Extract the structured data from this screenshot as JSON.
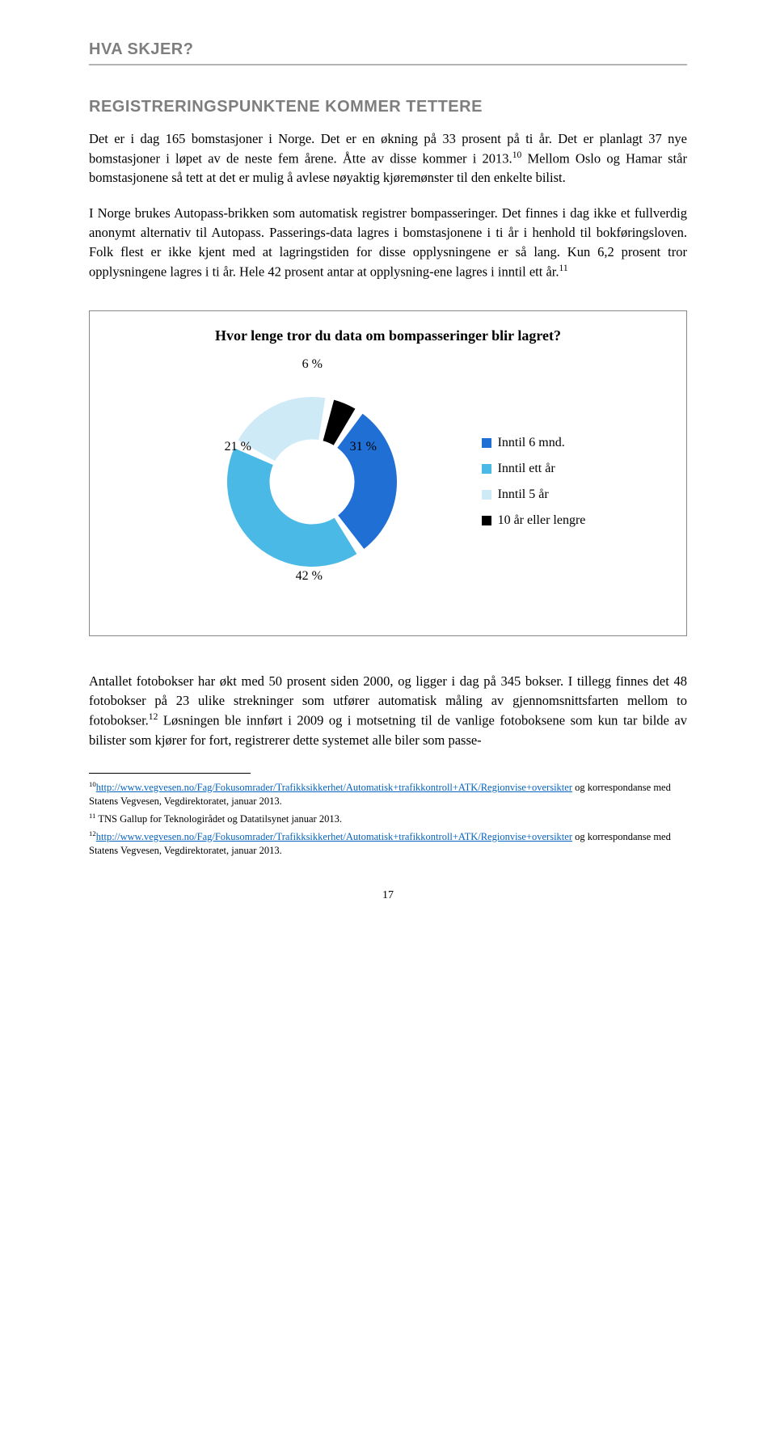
{
  "header": {
    "title": "HVA SKJER?"
  },
  "section": {
    "title": "REGISTRERINGSPUNKTENE KOMMER TETTERE"
  },
  "paragraphs": {
    "p1a": "Det er i dag 165 bomstasjoner i Norge. Det er en økning på 33 prosent på ti år. Det er planlagt 37 nye bomstasjoner i løpet av de neste fem årene. Åtte av disse kommer i 2013.",
    "p1b": " Mellom Oslo og Hamar står bomstasjonene så tett at det er mulig å avlese nøyaktig kjøremønster til den enkelte bilist.",
    "p2a": "I Norge brukes Autopass-brikken som automatisk registrer bompasseringer. Det finnes i dag ikke et fullverdig anonymt alternativ til Autopass. Passerings-data lagres i bomstasjonene i ti år i henhold til bokføringsloven. Folk flest er ikke kjent med at lagringstiden for disse opplysningene er så lang. Kun 6,2 prosent tror opplysningene lagres i ti år. Hele 42 prosent antar at opplysning-ene lagres i inntil ett år.",
    "p3a": "Antallet fotobokser har økt med 50 prosent siden 2000, og ligger i dag på 345 bokser.  I tillegg finnes det 48 fotobokser på 23 ulike strekninger som utfører automatisk måling av gjennomsnittsfarten mellom to fotobokser.",
    "p3b": " Løsningen ble innført i 2009 og i motsetning til de vanlige fotoboksene som kun tar bilde av bilister som kjører for fort, registrerer dette systemet alle biler som passe-"
  },
  "superscripts": {
    "s10": "10",
    "s11": "11",
    "s12": "12"
  },
  "chart": {
    "type": "donut",
    "title": "Hvor lenge tror du data om bompasseringer blir lagret?",
    "slices": [
      {
        "label": "Inntil 6 mnd.",
        "value": 31,
        "display": "31 %",
        "color": "#1f6fd4"
      },
      {
        "label": "Inntil ett år",
        "value": 42,
        "display": "42 %",
        "color": "#4bb9e6"
      },
      {
        "label": "Inntil 5 år",
        "value": 21,
        "display": "21 %",
        "color": "#cfeaf7"
      },
      {
        "label": "10 år eller lengre",
        "value": 6,
        "display": "6 %",
        "color": "#000000"
      }
    ],
    "background_color": "#ffffff",
    "donut_inner_ratio": 0.5,
    "gap_degrees": 6,
    "start_angle": -78
  },
  "footnotes": {
    "f10_num": "10",
    "f10_link": "http://www.vegvesen.no/Fag/Fokusomrader/Trafikksikkerhet/Automatisk+trafikkontroll+ATK/Regionvise+oversikter",
    "f10_rest": " og korrespondanse med Statens Vegvesen, Vegdirektoratet, januar 2013.",
    "f11_num": "11",
    "f11_text": " TNS Gallup for Teknologirådet og Datatilsynet januar 2013.",
    "f12_num": "12",
    "f12_link": "http://www.vegvesen.no/Fag/Fokusomrader/Trafikksikkerhet/Automatisk+trafikkontroll+ATK/Regionvise+oversikter",
    "f12_rest": " og korrespondanse med Statens Vegvesen, Vegdirektoratet, januar 2013."
  },
  "page_number": "17"
}
